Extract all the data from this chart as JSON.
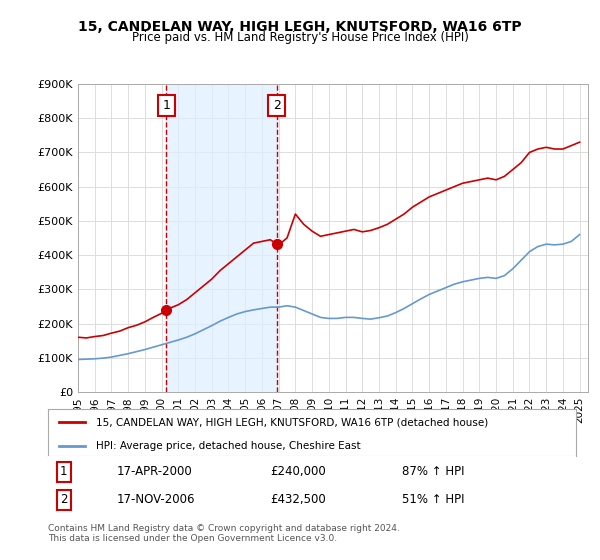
{
  "title": "15, CANDELAN WAY, HIGH LEGH, KNUTSFORD, WA16 6TP",
  "subtitle": "Price paid vs. HM Land Registry's House Price Index (HPI)",
  "legend_label_red": "15, CANDELAN WAY, HIGH LEGH, KNUTSFORD, WA16 6TP (detached house)",
  "legend_label_blue": "HPI: Average price, detached house, Cheshire East",
  "footer": "Contains HM Land Registry data © Crown copyright and database right 2024.\nThis data is licensed under the Open Government Licence v3.0.",
  "sale1_label": "1",
  "sale1_date": "17-APR-2000",
  "sale1_price": "£240,000",
  "sale1_hpi": "87% ↑ HPI",
  "sale2_label": "2",
  "sale2_date": "17-NOV-2006",
  "sale2_price": "£432,500",
  "sale2_hpi": "51% ↑ HPI",
  "sale1_year": 2000.29,
  "sale1_value": 240000,
  "sale2_year": 2006.88,
  "sale2_value": 432500,
  "red_color": "#cc0000",
  "blue_color": "#6699cc",
  "vline_color": "#cc0000",
  "shade_color": "#ddeeff",
  "ylim": [
    0,
    900000
  ],
  "xlim_start": 1995.0,
  "xlim_end": 2025.5,
  "yticks": [
    0,
    100000,
    200000,
    300000,
    400000,
    500000,
    600000,
    700000,
    800000,
    900000
  ],
  "ytick_labels": [
    "£0",
    "£100K",
    "£200K",
    "£300K",
    "£400K",
    "£500K",
    "£600K",
    "£700K",
    "£800K",
    "£900K"
  ],
  "xticks": [
    1995,
    1996,
    1997,
    1998,
    1999,
    2000,
    2001,
    2002,
    2003,
    2004,
    2005,
    2006,
    2007,
    2008,
    2009,
    2010,
    2011,
    2012,
    2013,
    2014,
    2015,
    2016,
    2017,
    2018,
    2019,
    2020,
    2021,
    2022,
    2023,
    2024,
    2025
  ],
  "red_x": [
    1995.0,
    1995.5,
    1996.0,
    1996.5,
    1997.0,
    1997.5,
    1998.0,
    1998.5,
    1999.0,
    1999.5,
    2000.0,
    2000.29,
    2000.5,
    2001.0,
    2001.5,
    2002.0,
    2002.5,
    2003.0,
    2003.5,
    2004.0,
    2004.5,
    2005.0,
    2005.5,
    2006.0,
    2006.5,
    2006.88,
    2007.0,
    2007.5,
    2008.0,
    2008.5,
    2009.0,
    2009.5,
    2010.0,
    2010.5,
    2011.0,
    2011.5,
    2012.0,
    2012.5,
    2013.0,
    2013.5,
    2014.0,
    2014.5,
    2015.0,
    2015.5,
    2016.0,
    2016.5,
    2017.0,
    2017.5,
    2018.0,
    2018.5,
    2019.0,
    2019.5,
    2020.0,
    2020.5,
    2021.0,
    2021.5,
    2022.0,
    2022.5,
    2023.0,
    2023.5,
    2024.0,
    2024.5,
    2025.0
  ],
  "red_y": [
    160000,
    158000,
    162000,
    165000,
    172000,
    178000,
    188000,
    195000,
    205000,
    218000,
    230000,
    240000,
    245000,
    255000,
    270000,
    290000,
    310000,
    330000,
    355000,
    375000,
    395000,
    415000,
    435000,
    440000,
    445000,
    432500,
    430000,
    450000,
    520000,
    490000,
    470000,
    455000,
    460000,
    465000,
    470000,
    475000,
    468000,
    472000,
    480000,
    490000,
    505000,
    520000,
    540000,
    555000,
    570000,
    580000,
    590000,
    600000,
    610000,
    615000,
    620000,
    625000,
    620000,
    630000,
    650000,
    670000,
    700000,
    710000,
    715000,
    710000,
    710000,
    720000,
    730000
  ],
  "blue_x": [
    1995.0,
    1995.5,
    1996.0,
    1996.5,
    1997.0,
    1997.5,
    1998.0,
    1998.5,
    1999.0,
    1999.5,
    2000.0,
    2000.5,
    2001.0,
    2001.5,
    2002.0,
    2002.5,
    2003.0,
    2003.5,
    2004.0,
    2004.5,
    2005.0,
    2005.5,
    2006.0,
    2006.5,
    2007.0,
    2007.5,
    2008.0,
    2008.5,
    2009.0,
    2009.5,
    2010.0,
    2010.5,
    2011.0,
    2011.5,
    2012.0,
    2012.5,
    2013.0,
    2013.5,
    2014.0,
    2014.5,
    2015.0,
    2015.5,
    2016.0,
    2016.5,
    2017.0,
    2017.5,
    2018.0,
    2018.5,
    2019.0,
    2019.5,
    2020.0,
    2020.5,
    2021.0,
    2021.5,
    2022.0,
    2022.5,
    2023.0,
    2023.5,
    2024.0,
    2024.5,
    2025.0
  ],
  "blue_y": [
    95000,
    96000,
    97000,
    99000,
    102000,
    107000,
    112000,
    118000,
    124000,
    131000,
    138000,
    145000,
    152000,
    160000,
    170000,
    182000,
    194000,
    207000,
    218000,
    228000,
    235000,
    240000,
    244000,
    248000,
    248000,
    252000,
    248000,
    238000,
    228000,
    218000,
    215000,
    215000,
    218000,
    218000,
    215000,
    213000,
    217000,
    222000,
    232000,
    244000,
    258000,
    272000,
    285000,
    295000,
    305000,
    315000,
    322000,
    327000,
    332000,
    335000,
    332000,
    340000,
    360000,
    385000,
    410000,
    425000,
    432000,
    430000,
    432000,
    440000,
    460000
  ],
  "shade_x1": 2000.29,
  "shade_x2": 2006.88,
  "bg_color": "#ffffff",
  "grid_color": "#dddddd"
}
